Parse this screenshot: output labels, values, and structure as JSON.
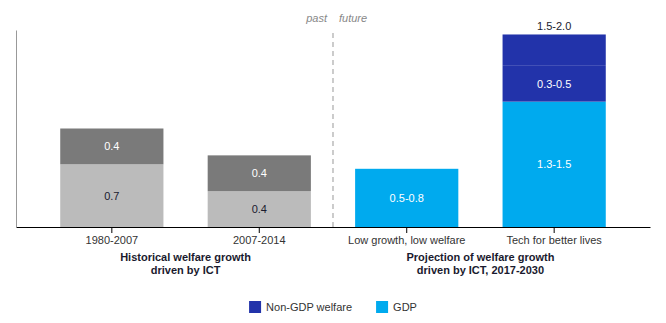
{
  "chart_data": {
    "type": "bar",
    "stacked": true,
    "categories": [
      "1980-2007",
      "2007-2014",
      "Low growth, low welfare",
      "Tech for better lives"
    ],
    "series": [
      {
        "name": "GDP",
        "color": "#00aaee",
        "colors": [
          "#bbbbbb",
          "#bbbbbb",
          "#00aaee",
          "#00aaee"
        ],
        "values": [
          0.7,
          0.4,
          0.65,
          1.4
        ],
        "value_labels": [
          "0.7",
          "0.4",
          "0.5-0.8",
          "1.3-1.5"
        ]
      },
      {
        "name": "Non-GDP welfare",
        "color": "#2233aa",
        "colors": [
          "#7a7a7a",
          "#7a7a7a",
          "#2233aa",
          "#2233aa"
        ],
        "values": [
          0.4,
          0.4,
          0.0,
          0.4
        ],
        "value_labels": [
          "0.4",
          "0.4",
          null,
          "0.3-0.5"
        ]
      },
      {
        "colors": [
          "#7a7a7a",
          "#7a7a7a",
          "#2233aa",
          "#2233aa"
        ],
        "values": [
          0.0,
          0.0,
          0.0,
          0.35
        ],
        "value_labels": [
          null,
          null,
          null,
          "1.5-2.0"
        ]
      }
    ],
    "ylim": [
      0,
      2.2
    ],
    "data_labels": true,
    "tick_labels": "x",
    "grid": false,
    "legend": "bottom",
    "annotations": [
      "past",
      "future",
      "Historical welfare growth\ndriven by ICT",
      "Projection of welfare growth\ndriven by ICT, 2017-2030"
    ]
  }
}
